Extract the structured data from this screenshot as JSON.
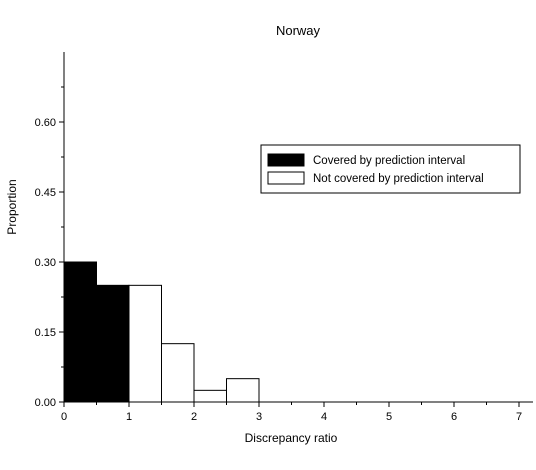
{
  "chart_data": {
    "type": "bar",
    "title": "Norway",
    "xlabel": "Discrepancy ratio",
    "ylabel": "Proportion",
    "xlim": [
      0,
      7
    ],
    "ylim": [
      0,
      0.75
    ],
    "x_ticks": [
      "0",
      "1",
      "2",
      "3",
      "4",
      "5",
      "6",
      "7"
    ],
    "y_ticks": [
      "0.00",
      "0.15",
      "0.30",
      "0.45",
      "0.60"
    ],
    "bin_width": 0.5,
    "legend_position": "right",
    "series": [
      {
        "name": "Covered by prediction interval",
        "color": "#000000",
        "bins": [
          {
            "start": 0.0,
            "end": 0.5,
            "value": 0.3
          },
          {
            "start": 0.5,
            "end": 1.0,
            "value": 0.25
          }
        ]
      },
      {
        "name": "Not covered by prediction interval",
        "color": "#ffffff",
        "bins": [
          {
            "start": 1.0,
            "end": 1.5,
            "value": 0.25
          },
          {
            "start": 1.5,
            "end": 2.0,
            "value": 0.125
          },
          {
            "start": 2.0,
            "end": 2.5,
            "value": 0.025
          },
          {
            "start": 2.5,
            "end": 3.0,
            "value": 0.05
          }
        ]
      }
    ]
  }
}
